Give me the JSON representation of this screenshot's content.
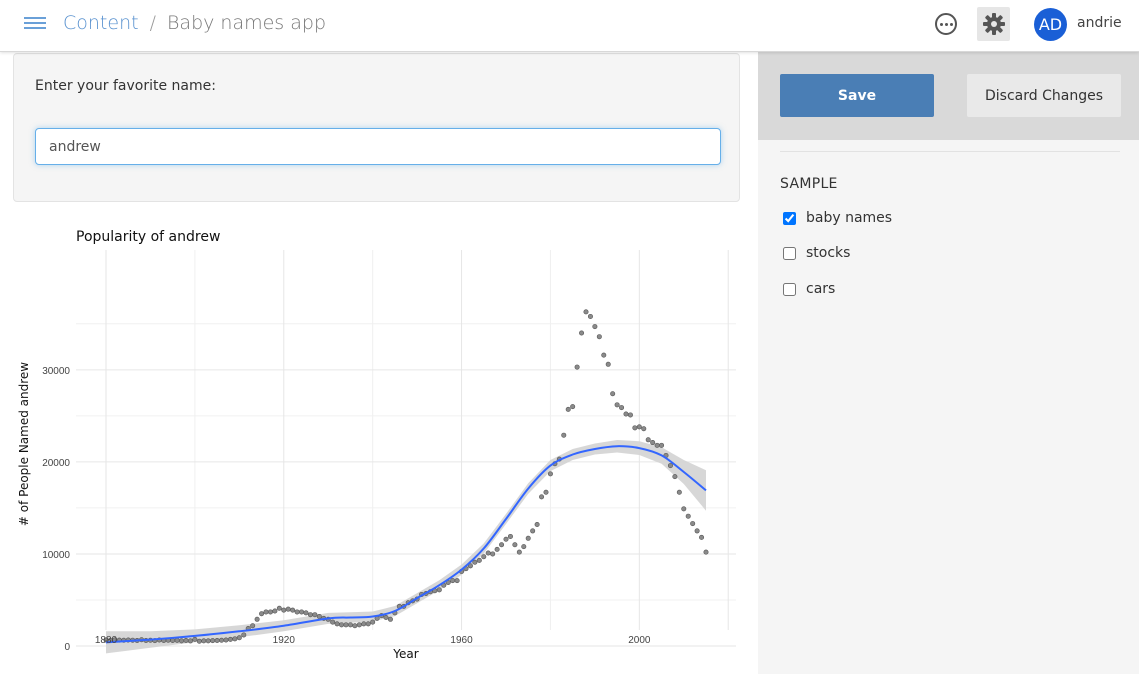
{
  "topbar": {
    "breadcrumb": {
      "parent": "Content",
      "separator": "/",
      "current": "Baby names app"
    },
    "user": {
      "initials": "AD",
      "name": "andrie"
    },
    "icons": {
      "menu": "hamburger-icon",
      "more": "more-horizontal-icon",
      "settings": "gear-icon"
    }
  },
  "input_panel": {
    "label": "Enter your favorite name:",
    "value": "andrew"
  },
  "sidebar": {
    "save_label": "Save",
    "discard_label": "Discard Changes",
    "sample_title": "SAMPLE",
    "options": [
      {
        "label": "baby names",
        "checked": true
      },
      {
        "label": "stocks",
        "checked": false
      },
      {
        "label": "cars",
        "checked": false
      }
    ]
  },
  "colors": {
    "accent": "#4a7eb5",
    "smooth_line": "#3366ff",
    "points": "#555555",
    "band": "#d3d3d3"
  },
  "chart_data": {
    "type": "scatter",
    "title": "Popularity of andrew",
    "xlabel": "Year",
    "ylabel": "# of People Named andrew",
    "xlim": [
      1880,
      2015
    ],
    "ylim": [
      0,
      36500
    ],
    "xticks": [
      1880,
      1920,
      1960,
      2000
    ],
    "yticks": [
      0,
      10000,
      20000,
      30000
    ],
    "grid": true,
    "points": [
      [
        1880,
        650
      ],
      [
        1881,
        600
      ],
      [
        1882,
        660
      ],
      [
        1883,
        640
      ],
      [
        1884,
        620
      ],
      [
        1885,
        650
      ],
      [
        1886,
        630
      ],
      [
        1887,
        600
      ],
      [
        1888,
        680
      ],
      [
        1889,
        600
      ],
      [
        1890,
        620
      ],
      [
        1891,
        580
      ],
      [
        1892,
        650
      ],
      [
        1893,
        600
      ],
      [
        1894,
        620
      ],
      [
        1895,
        600
      ],
      [
        1896,
        610
      ],
      [
        1897,
        560
      ],
      [
        1898,
        600
      ],
      [
        1899,
        550
      ],
      [
        1900,
        720
      ],
      [
        1901,
        520
      ],
      [
        1902,
        560
      ],
      [
        1903,
        560
      ],
      [
        1904,
        580
      ],
      [
        1905,
        600
      ],
      [
        1906,
        620
      ],
      [
        1907,
        650
      ],
      [
        1908,
        720
      ],
      [
        1909,
        780
      ],
      [
        1910,
        900
      ],
      [
        1911,
        1200
      ],
      [
        1912,
        1900
      ],
      [
        1913,
        2200
      ],
      [
        1914,
        2900
      ],
      [
        1915,
        3500
      ],
      [
        1916,
        3700
      ],
      [
        1917,
        3700
      ],
      [
        1918,
        3800
      ],
      [
        1919,
        4100
      ],
      [
        1920,
        3900
      ],
      [
        1921,
        4000
      ],
      [
        1922,
        3900
      ],
      [
        1923,
        3700
      ],
      [
        1924,
        3700
      ],
      [
        1925,
        3600
      ],
      [
        1926,
        3400
      ],
      [
        1927,
        3400
      ],
      [
        1928,
        3200
      ],
      [
        1929,
        3000
      ],
      [
        1930,
        2900
      ],
      [
        1931,
        2600
      ],
      [
        1932,
        2400
      ],
      [
        1933,
        2300
      ],
      [
        1934,
        2300
      ],
      [
        1935,
        2300
      ],
      [
        1936,
        2200
      ],
      [
        1937,
        2300
      ],
      [
        1938,
        2400
      ],
      [
        1939,
        2400
      ],
      [
        1940,
        2600
      ],
      [
        1941,
        3000
      ],
      [
        1942,
        3300
      ],
      [
        1943,
        3100
      ],
      [
        1944,
        2900
      ],
      [
        1945,
        3600
      ],
      [
        1946,
        4300
      ],
      [
        1947,
        4300
      ],
      [
        1948,
        4700
      ],
      [
        1949,
        4900
      ],
      [
        1950,
        5100
      ],
      [
        1951,
        5600
      ],
      [
        1952,
        5700
      ],
      [
        1953,
        5900
      ],
      [
        1954,
        6000
      ],
      [
        1955,
        6100
      ],
      [
        1956,
        6600
      ],
      [
        1957,
        6900
      ],
      [
        1958,
        7100
      ],
      [
        1959,
        7100
      ],
      [
        1960,
        8100
      ],
      [
        1961,
        8400
      ],
      [
        1962,
        8700
      ],
      [
        1963,
        9100
      ],
      [
        1964,
        9300
      ],
      [
        1965,
        9700
      ],
      [
        1966,
        10100
      ],
      [
        1967,
        10000
      ],
      [
        1968,
        10500
      ],
      [
        1969,
        11000
      ],
      [
        1970,
        11600
      ],
      [
        1971,
        11900
      ],
      [
        1972,
        11000
      ],
      [
        1973,
        10200
      ],
      [
        1974,
        10800
      ],
      [
        1975,
        11700
      ],
      [
        1976,
        12500
      ],
      [
        1977,
        13200
      ],
      [
        1978,
        16200
      ],
      [
        1979,
        16700
      ],
      [
        1980,
        18700
      ],
      [
        1981,
        19800
      ],
      [
        1982,
        20300
      ],
      [
        1983,
        22900
      ],
      [
        1984,
        25700
      ],
      [
        1985,
        26000
      ],
      [
        1986,
        30300
      ],
      [
        1987,
        34000
      ],
      [
        1988,
        36300
      ],
      [
        1989,
        35800
      ],
      [
        1990,
        34700
      ],
      [
        1991,
        33600
      ],
      [
        1992,
        31600
      ],
      [
        1993,
        30600
      ],
      [
        1994,
        27400
      ],
      [
        1995,
        26200
      ],
      [
        1996,
        25900
      ],
      [
        1997,
        25200
      ],
      [
        1998,
        25100
      ],
      [
        1999,
        23700
      ],
      [
        2000,
        23800
      ],
      [
        2001,
        23600
      ],
      [
        2002,
        22400
      ],
      [
        2003,
        22100
      ],
      [
        2004,
        21800
      ],
      [
        2005,
        21800
      ],
      [
        2006,
        20700
      ],
      [
        2007,
        19600
      ],
      [
        2008,
        18400
      ],
      [
        2009,
        16700
      ],
      [
        2010,
        14900
      ],
      [
        2011,
        14100
      ],
      [
        2012,
        13300
      ],
      [
        2013,
        12500
      ],
      [
        2014,
        11800
      ],
      [
        2015,
        10200
      ]
    ],
    "smooth": [
      [
        1880,
        400
      ],
      [
        1890,
        700
      ],
      [
        1900,
        1100
      ],
      [
        1910,
        1600
      ],
      [
        1920,
        2200
      ],
      [
        1930,
        3000
      ],
      [
        1935,
        3100
      ],
      [
        1940,
        3200
      ],
      [
        1945,
        3800
      ],
      [
        1950,
        5200
      ],
      [
        1955,
        6600
      ],
      [
        1960,
        8300
      ],
      [
        1965,
        10600
      ],
      [
        1970,
        13800
      ],
      [
        1975,
        17100
      ],
      [
        1980,
        19600
      ],
      [
        1985,
        20800
      ],
      [
        1990,
        21400
      ],
      [
        1995,
        21700
      ],
      [
        2000,
        21500
      ],
      [
        2005,
        20700
      ],
      [
        2010,
        18900
      ],
      [
        2015,
        16900
      ]
    ],
    "band_halfwidth": [
      [
        1880,
        1200
      ],
      [
        1890,
        900
      ],
      [
        1900,
        700
      ],
      [
        1910,
        650
      ],
      [
        1920,
        600
      ],
      [
        1930,
        600
      ],
      [
        1940,
        550
      ],
      [
        1950,
        550
      ],
      [
        1960,
        550
      ],
      [
        1970,
        550
      ],
      [
        1980,
        600
      ],
      [
        1990,
        600
      ],
      [
        2000,
        750
      ],
      [
        2005,
        900
      ],
      [
        2010,
        1300
      ],
      [
        2015,
        2200
      ]
    ]
  }
}
